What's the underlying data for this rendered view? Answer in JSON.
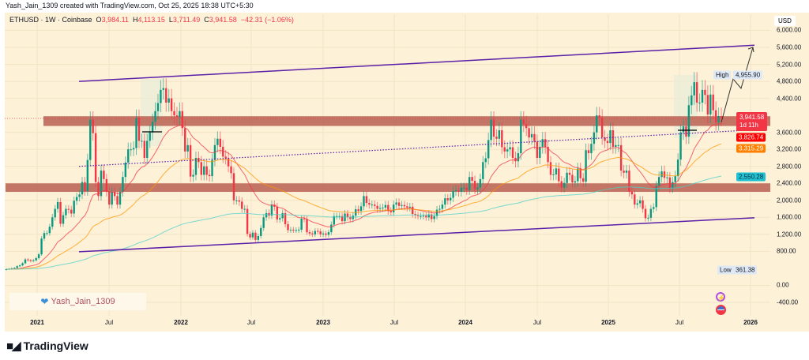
{
  "caption": "Yash_Jain_1309 created with TradingView.com, Oct 25, 2025 18:38 UTC+5:30",
  "legend": {
    "symbol": "ETHUSD · 1W · Coinbase",
    "o_label": "O",
    "o": "3,984.11",
    "h_label": "H",
    "h": "4,113.15",
    "l_label": "L",
    "l": "3,711.49",
    "c_label": "C",
    "c": "3,941.58",
    "change": "−42.31 (−1.06%)"
  },
  "watermark": "Yash_Jain_1309",
  "footer": {
    "brand": "TradingView"
  },
  "colors": {
    "up": "#089981",
    "down": "#f23645",
    "background": "#fdf1d8",
    "channel": "#5b1fa8",
    "zone": "#b5574a",
    "ema_fast": "#f23645",
    "ema_mid": "#ff9800",
    "ema_slow": "#4dd0c8"
  },
  "axis": {
    "currency": "USD",
    "y_ticks": [
      "6,000.00",
      "5,600.00",
      "5,200.00",
      "4,800.00",
      "4,400.00",
      "3,600.00",
      "3,200.00",
      "2,800.00",
      "2,400.00",
      "2,000.00",
      "1,600.00",
      "1,200.00",
      "800.00",
      "0.00",
      "-400.00"
    ],
    "y_values": [
      6000,
      5600,
      5200,
      4800,
      4400,
      3600,
      3200,
      2800,
      2400,
      2000,
      1600,
      1200,
      800,
      0,
      -400
    ],
    "x_ticks": [
      "2021",
      "Jul",
      "2022",
      "Jul",
      "2023",
      "Jul",
      "2024",
      "Jul",
      "2025",
      "Jul",
      "2026"
    ]
  },
  "tags": {
    "high_label": "High",
    "high": "4,955.90",
    "low_label": "Low",
    "low": "361.38",
    "last": "3,941.58",
    "countdown": "1d 11h",
    "ema_fast": "3,826.74",
    "ema_mid": "3,315.29",
    "ema_slow": "2,550.28"
  },
  "chart_data": {
    "type": "candlestick",
    "title": "ETHUSD · 1W · Coinbase",
    "ylim": [
      -400,
      6000
    ],
    "grid": true,
    "x_range": [
      "2020-10",
      "2026-01"
    ],
    "weekly_closes": [
      380,
      390,
      400,
      410,
      450,
      470,
      520,
      610,
      590,
      570,
      590,
      640,
      730,
      1100,
      1230,
      1230,
      1380,
      1600,
      1800,
      1960,
      1450,
      1650,
      1800,
      1780,
      1690,
      1990,
      2080,
      2140,
      2430,
      2220,
      2950,
      3900,
      3580,
      2430,
      2100,
      2700,
      2500,
      2200,
      1900,
      2200,
      2100,
      1900,
      2200,
      2550,
      2890,
      3200,
      3200,
      3230,
      3940,
      3400,
      3400,
      3000,
      3400,
      3600,
      3850,
      4100,
      4290,
      4600,
      4640,
      4300,
      4400,
      4100,
      4000,
      3960,
      4100,
      3700,
      3150,
      3300,
      2560,
      2600,
      3000,
      2900,
      2600,
      2800,
      2600,
      2570,
      2950,
      3300,
      3450,
      3260,
      3030,
      2990,
      2800,
      2640,
      2000,
      2000,
      1970,
      1800,
      1800,
      1210,
      1130,
      1240,
      1070,
      1160,
      1350,
      1600,
      1700,
      1640,
      1900,
      1850,
      1550,
      1580,
      1700,
      1440,
      1300,
      1310,
      1300,
      1300,
      1310,
      1570,
      1560,
      1250,
      1220,
      1200,
      1280,
      1270,
      1200,
      1220,
      1190,
      1250,
      1430,
      1630,
      1630,
      1630,
      1510,
      1690,
      1600,
      1560,
      1640,
      1790,
      1750,
      1860,
      2100,
      1940,
      1900,
      1900,
      1870,
      1800,
      1820,
      1830,
      1890,
      1750,
      1720,
      1900,
      1950,
      1870,
      1890,
      1860,
      1830,
      1850,
      1680,
      1650,
      1630,
      1630,
      1640,
      1600,
      1670,
      1560,
      1630,
      1780,
      1800,
      1900,
      2050,
      2000,
      2060,
      2220,
      2240,
      2200,
      2300,
      2300,
      2240,
      2550,
      2460,
      2260,
      2300,
      2500,
      2900,
      2990,
      3420,
      3900,
      3500,
      3450,
      3650,
      3250,
      3150,
      3200,
      3250,
      3000,
      2920,
      3110,
      3900,
      3800,
      3700,
      3480,
      3560,
      3380,
      3000,
      3260,
      3440,
      3260,
      2900,
      2600,
      2610,
      2750,
      2450,
      2300,
      2410,
      2650,
      2600,
      2420,
      2450,
      2750,
      2520,
      2440,
      3180,
      3110,
      3330,
      3600,
      4000,
      3950,
      3480,
      3400,
      3350,
      3650,
      3260,
      3300,
      3300,
      2700,
      2650,
      2700,
      2200,
      2140,
      1900,
      1930,
      2000,
      1800,
      1580,
      1590,
      1800,
      1840,
      2340,
      2550,
      2680,
      2530,
      2540,
      2290,
      2430,
      2570,
      2960,
      3600,
      3740,
      3500,
      4240,
      4470,
      4780,
      4300,
      4300,
      4600,
      4480,
      4020,
      4490,
      4120,
      3830,
      3984,
      3941.58
    ],
    "indicators": [
      {
        "type": "EMA",
        "last": 3826.74
      },
      {
        "type": "EMA",
        "last": 3315.29
      },
      {
        "type": "EMA",
        "last": 2550.28
      }
    ],
    "resistance_zones": [
      [
        3750,
        3980
      ],
      [
        2200,
        2400
      ]
    ],
    "channel": {
      "upper": [
        4800,
        5650
      ],
      "lower": [
        790,
        1590
      ],
      "mid": [
        2800,
        3660
      ]
    }
  }
}
